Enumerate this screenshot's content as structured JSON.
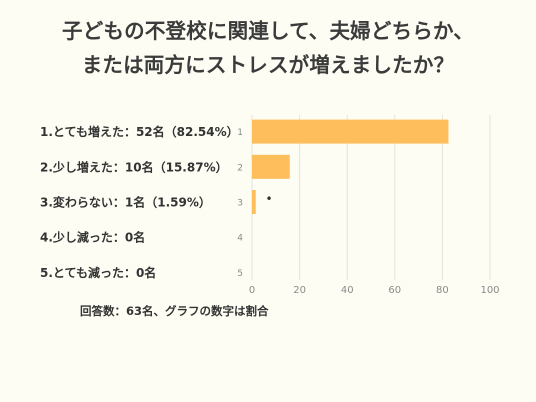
{
  "title_lines": [
    "子どもの不登校に関連して、夫婦どちらか、",
    "または両方にストレスが増えましたか？"
  ],
  "footer": "回答数：63名、グラフの数字は割合",
  "bar_color": "#ffbe5c",
  "chart_data": {
    "type": "bar",
    "orientation": "horizontal",
    "categories": [
      "1.とても増えた：52名（82.54%）",
      "2.少し増えた：10名（15.87%）",
      "3.変わらない：1名（1.59%）",
      "4.少し減った：0名",
      "5.とても減った：0名"
    ],
    "row_numbers": [
      "1",
      "2",
      "3",
      "4",
      "5"
    ],
    "values": [
      82.54,
      15.87,
      1.59,
      0,
      0
    ],
    "xlim": [
      0,
      100
    ],
    "xticks": [
      0,
      20,
      40,
      60,
      80,
      100
    ],
    "grid": true,
    "annotations": [
      "•"
    ]
  }
}
